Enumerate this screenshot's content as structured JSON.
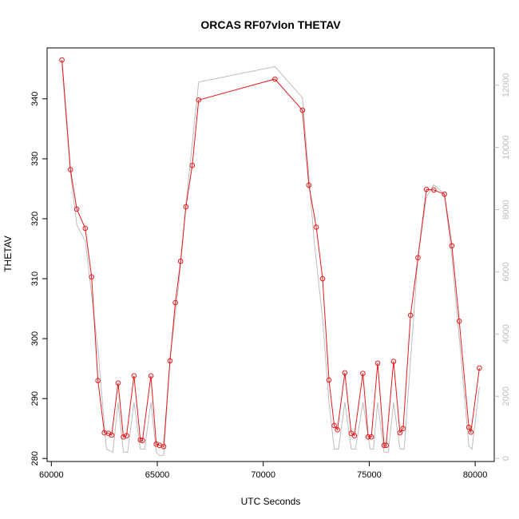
{
  "chart_data": {
    "type": "line",
    "title": "ORCAS RF07vlon THETAV",
    "xlabel": "UTC Seconds",
    "ylabel": "THETAV",
    "xlim": [
      59800,
      80900
    ],
    "ylim": [
      279.5,
      348.5
    ],
    "y2lim": [
      -100,
      13200
    ],
    "x_ticks": [
      60000,
      65000,
      70000,
      75000,
      80000
    ],
    "y_ticks": [
      280,
      290,
      300,
      310,
      320,
      330,
      340
    ],
    "y2_ticks": [
      0,
      2000,
      4000,
      6000,
      8000,
      10000,
      12000
    ],
    "series": [
      {
        "color": "#e31a1c",
        "marker": "open-circle",
        "axis": "left",
        "x": [
          60500,
          60900,
          61200,
          61600,
          61900,
          62200,
          62500,
          62700,
          62850,
          63150,
          63400,
          63550,
          63900,
          64200,
          64300,
          64700,
          64950,
          65100,
          65300,
          65600,
          65850,
          66100,
          66350,
          66650,
          66950,
          70550,
          71850,
          72150,
          72500,
          72800,
          73100,
          73350,
          73500,
          73850,
          74150,
          74300,
          74700,
          74950,
          75100,
          75400,
          75700,
          75800,
          76150,
          76450,
          76600,
          76950,
          77300,
          77700,
          78050,
          78550,
          78900,
          79250,
          79700,
          79800,
          80200
        ],
        "y": [
          346.5,
          328.2,
          321.6,
          318.4,
          310.3,
          293.0,
          284.3,
          284.2,
          283.9,
          292.6,
          283.6,
          283.8,
          293.8,
          283.1,
          283.0,
          293.8,
          282.4,
          282.2,
          282.0,
          296.3,
          306.0,
          312.9,
          322.0,
          328.9,
          339.8,
          343.3,
          338.1,
          325.6,
          318.6,
          310.0,
          293.1,
          285.5,
          284.8,
          294.3,
          284.2,
          283.8,
          294.2,
          283.6,
          283.6,
          295.9,
          282.2,
          282.2,
          296.2,
          284.3,
          285.0,
          303.9,
          313.5,
          324.9,
          324.8,
          324.1,
          315.5,
          302.9,
          285.2,
          284.4,
          295.1
        ]
      },
      {
        "color": "#bdbdbd",
        "axis": "right",
        "x": [
          60500,
          60900,
          61200,
          61600,
          62200,
          62600,
          62900,
          63150,
          63400,
          63600,
          63900,
          64200,
          64400,
          64700,
          64950,
          65100,
          65300,
          65600,
          66000,
          66400,
          66950,
          70550,
          71850,
          72400,
          72800,
          73100,
          73350,
          73550,
          73850,
          74150,
          74350,
          74700,
          75050,
          75200,
          75400,
          75700,
          75900,
          76150,
          76450,
          76650,
          77300,
          77700,
          78050,
          78550,
          78900,
          79300,
          79700,
          79850,
          80200
        ],
        "y": [
          12650,
          9200,
          7500,
          7000,
          3500,
          300,
          200,
          1800,
          200,
          200,
          1800,
          300,
          300,
          1800,
          200,
          100,
          100,
          3200,
          5500,
          8500,
          12100,
          12600,
          11600,
          7000,
          4500,
          1800,
          300,
          300,
          1800,
          300,
          300,
          1800,
          300,
          300,
          1800,
          200,
          200,
          1800,
          300,
          300,
          6500,
          8400,
          8800,
          8500,
          6500,
          3500,
          400,
          300,
          2300
        ]
      }
    ]
  }
}
